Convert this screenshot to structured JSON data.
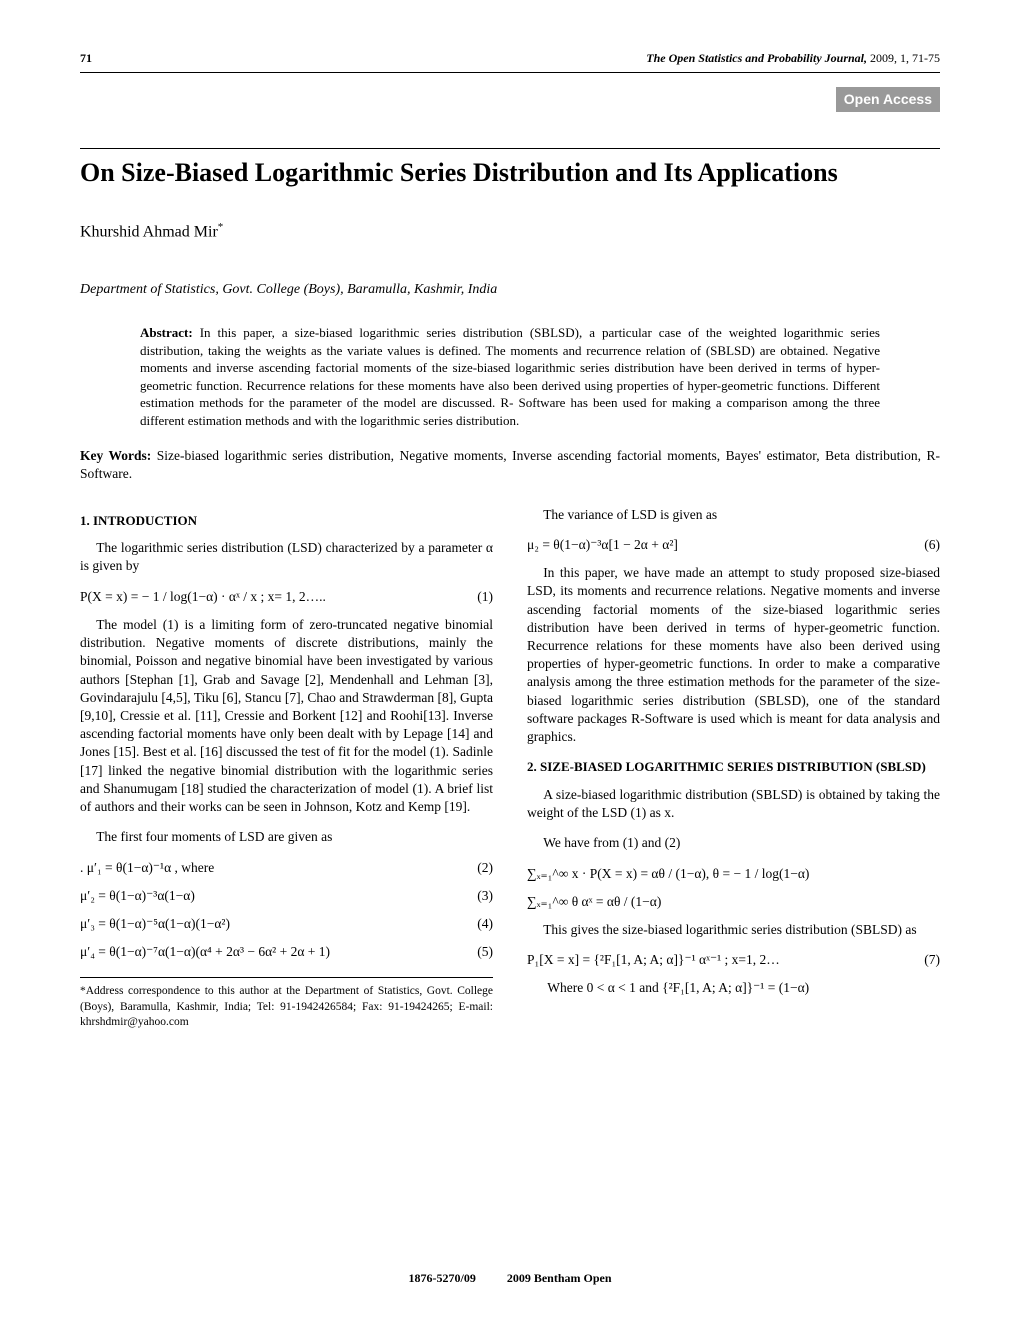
{
  "header": {
    "page_number": "71",
    "journal_italic": "The Open Statistics and Probability Journal,",
    "journal_year_vol": " 2009, 1, 71-75",
    "open_access": "Open Access"
  },
  "paper": {
    "title": "On Size-Biased Logarithmic Series Distribution and Its Applications",
    "author": "Khurshid Ahmad Mir",
    "author_sup": "*",
    "affiliation": "Department of Statistics, Govt.  College (Boys), Baramulla, Kashmir,  India",
    "abstract_label": "Abstract:",
    "abstract_text": " In this paper, a size-biased logarithmic series distribution (SBLSD), a particular case of the weighted logarithmic series distribution, taking the weights as the variate values is defined. The moments and recurrence relation of (SBLSD) are obtained. Negative moments and inverse ascending factorial moments of the size-biased logarithmic series distribution have been derived in terms of hyper-geometric function. Recurrence relations for these moments have also been derived using properties of hyper-geometric functions. Different estimation methods for the parameter of the model are discussed. R- Software has been used for making a comparison among the three different estimation methods and with the logarithmic series distribution.",
    "keywords_label": "Key Words:",
    "keywords_text": " Size-biased logarithmic series distribution, Negative moments, Inverse ascending factorial moments, Bayes' estimator, Beta distribution, R-Software."
  },
  "left": {
    "sec1_head": "1.   INTRODUCTION",
    "p1": "The logarithmic series distribution (LSD) characterized by a parameter  α  is given by",
    "eq1_body": "P(X = x) = − 1 / log(1−α) · αˣ / x  ; x= 1, 2…..",
    "eq1_num": "(1)",
    "p2": "The model (1) is a limiting form of zero-truncated negative binomial distribution. Negative moments of discrete distributions, mainly the binomial, Poisson and negative binomial have been investigated by various authors [Stephan [1], Grab and Savage [2], Mendenhall and Lehman [3], Govindarajulu [4,5], Tiku [6], Stancu [7], Chao and Strawderman [8], Gupta [9,10], Cressie et al. [11], Cressie and Borkent [12] and Roohi[13]. Inverse ascending factorial moments have only been dealt with by Lepage [14] and Jones [15]. Best et al. [16] discussed the test of fit for the model (1). Sadinle [17] linked the negative binomial distribution with the logarithmic series and Shanumugam [18] studied the characterization of model (1). A brief list of authors and their works can be seen in Johnson, Kotz and Kemp [19].",
    "p3": "The first four moments of LSD are given as",
    "eq2_body": ".  μ′₁ = θ(1−α)⁻¹α , where",
    "eq2_num": "(2)",
    "eq3_body": "μ′₂ = θ(1−α)⁻³α(1−α)",
    "eq3_num": "(3)",
    "eq4_body": "μ′₃ = θ(1−α)⁻⁵α(1−α)(1−α²)",
    "eq4_num": "(4)",
    "eq5_body": "μ′₄ = θ(1−α)⁻⁷α(1−α)(α⁴ + 2α³ − 6α² + 2α + 1)",
    "eq5_num": "(5)",
    "footnote": "*Address correspondence to this author at the Department of Statistics, Govt. College (Boys), Baramulla, Kashmir, India; Tel: 91-1942426584; Fax: 91-19424265; E-mail: khrshdmir@yahoo.com"
  },
  "right": {
    "p1": "The variance of LSD is given as",
    "eq6_body": "μ₂ = θ(1−α)⁻³α[1 − 2α + α²]",
    "eq6_num": "(6)",
    "p2": "In this paper, we have made an attempt to study proposed size-biased LSD, its moments and recurrence relations. Negative moments and inverse ascending factorial moments of the size-biased logarithmic series distribution have been derived in terms of hyper-geometric function. Recurrence relations for these moments have also been derived using properties of hyper-geometric functions. In order to make a comparative analysis among the three estimation methods for the parameter of the size-biased logarithmic series distribution (SBLSD), one of the standard software packages R-Software is used which is meant for data analysis and graphics.",
    "sec2_head": "2. SIZE-BIASED LOGARITHMIC SERIES DISTRIBUTION (SBLSD)",
    "p3": "A size-biased logarithmic distribution (SBLSD) is obtained by taking the weight of the LSD (1) as x.",
    "p4": "We have from (1) and (2)",
    "eq_a_body": "∑ₓ₌₁^∞ x · P(X = x) = αθ / (1−α),      θ = − 1 / log(1−α)",
    "eq_b_body": "∑ₓ₌₁^∞ θ  αˣ = αθ / (1−α)",
    "p5": "This gives the size-biased logarithmic series distribution (SBLSD) as",
    "eq7_body": "P₁[X = x] =  {²F₁[1, A; A; α]}⁻¹ αˣ⁻¹ ; x=1, 2…",
    "eq7_num": "(7)",
    "p6": "Where  0 < α < 1 and  {²F₁[1, A; A; α]}⁻¹ = (1−α)"
  },
  "footer": {
    "issn": "1876-5270/09",
    "publisher": "2009 Bentham Open"
  }
}
